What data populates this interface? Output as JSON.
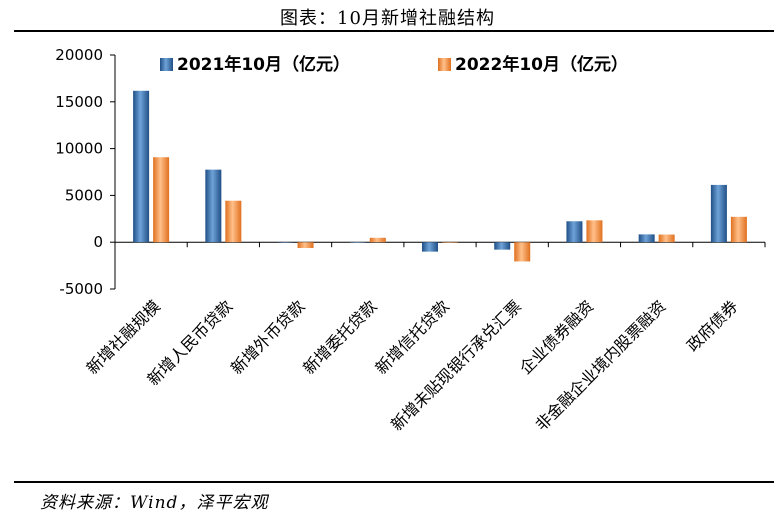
{
  "figure": {
    "title": "图表：10月新增社融结构",
    "source": "资料来源：Wind，泽平宏观"
  },
  "chart_data": {
    "type": "bar",
    "title": "",
    "xlabel": "",
    "ylabel": "",
    "ylim": [
      -5000,
      20000
    ],
    "yticks": [
      20000,
      15000,
      10000,
      5000,
      0,
      -5000
    ],
    "grid": false,
    "legend_position": "top-right",
    "categories": [
      "新增社融规模",
      "新增人民币贷款",
      "新增外币贷款",
      "新增委托贷款",
      "新增信托贷款",
      "新增未贴现银行承兑汇票",
      "企业债券融资",
      "非金融企业境内股票融资",
      "政府债券"
    ],
    "series": [
      {
        "name": "2021年10月（亿元）",
        "color": "#2f6fb0",
        "values": [
          16176,
          7752,
          -22,
          13,
          -1007,
          -795,
          2236,
          835,
          6120
        ]
      },
      {
        "name": "2022年10月（亿元）",
        "color": "#f08a3a",
        "values": [
          9079,
          4431,
          -619,
          472,
          -60,
          -2056,
          2337,
          818,
          2711
        ]
      }
    ]
  }
}
